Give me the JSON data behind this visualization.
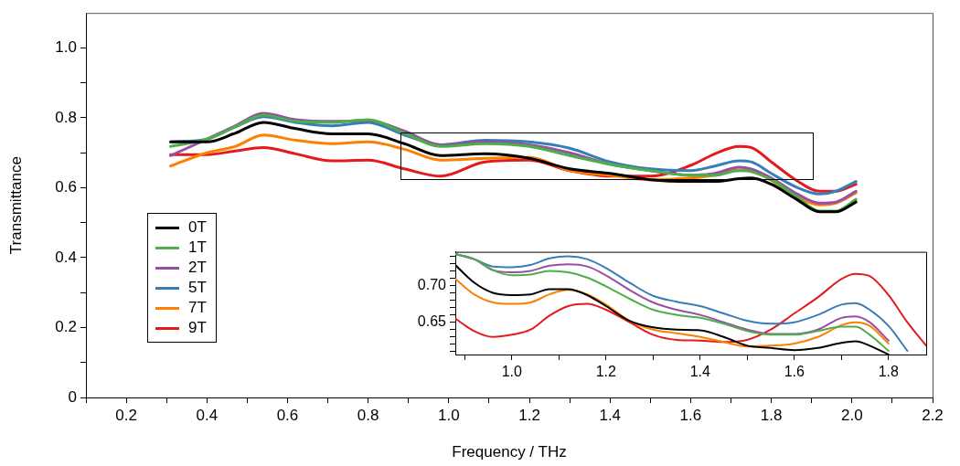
{
  "chart_data": [
    {
      "type": "line",
      "xlabel": "Frequency / THz",
      "ylabel": "Transmittance",
      "xlim": [
        0.1,
        2.2
      ],
      "ylim": [
        0,
        1.1
      ],
      "xticks": [
        {
          "value": 0.1,
          "label": null
        },
        0.2,
        {
          "value": 0.3,
          "label": null
        },
        0.4,
        {
          "value": 0.5,
          "label": null
        },
        0.6,
        {
          "value": 0.7,
          "label": null
        },
        0.8,
        {
          "value": 0.9,
          "label": null
        },
        {
          "value": 1,
          "label": "1.0"
        },
        {
          "value": 1.1,
          "label": null
        },
        1.2,
        {
          "value": 1.3,
          "label": null
        },
        1.4,
        {
          "value": 1.5,
          "label": null
        },
        1.6,
        {
          "value": 1.7,
          "label": null
        },
        1.8,
        {
          "value": 1.9,
          "label": null
        },
        {
          "value": 2,
          "label": "2.0"
        },
        {
          "value": 2.1,
          "label": null
        },
        2.2
      ],
      "yticks": [
        0,
        {
          "value": 0.1,
          "label": null
        },
        0.2,
        {
          "value": 0.3,
          "label": null
        },
        0.4,
        {
          "value": 0.5,
          "label": null
        },
        0.6,
        {
          "value": 0.7,
          "label": null
        },
        0.8,
        {
          "value": 0.9,
          "label": null
        },
        {
          "value": 1,
          "label": "1.0"
        }
      ],
      "x": [
        0.31,
        0.4,
        0.47,
        0.54,
        0.62,
        0.71,
        0.8,
        0.89,
        0.98,
        1.09,
        1.2,
        1.3,
        1.4,
        1.5,
        1.6,
        1.66,
        1.72,
        1.75,
        1.8,
        1.86,
        1.92,
        1.96,
        2.01
      ],
      "series": [
        {
          "name": "0T",
          "color": "#000000",
          "values": [
            0.731,
            0.731,
            0.756,
            0.787,
            0.769,
            0.754,
            0.754,
            0.726,
            0.692,
            0.697,
            0.684,
            0.654,
            0.641,
            0.623,
            0.618,
            0.618,
            0.626,
            0.628,
            0.61,
            0.569,
            0.531,
            0.531,
            0.559
          ]
        },
        {
          "name": "1T",
          "color": "#4daf4a",
          "values": [
            0.718,
            0.739,
            0.774,
            0.808,
            0.79,
            0.787,
            0.795,
            0.756,
            0.718,
            0.726,
            0.718,
            0.692,
            0.667,
            0.649,
            0.636,
            0.636,
            0.649,
            0.646,
            0.623,
            0.577,
            0.533,
            0.533,
            0.567
          ]
        },
        {
          "name": "2T",
          "color": "#984ea3",
          "values": [
            0.692,
            0.739,
            0.777,
            0.813,
            0.795,
            0.79,
            0.792,
            0.762,
            0.723,
            0.731,
            0.723,
            0.7,
            0.667,
            0.649,
            0.636,
            0.641,
            0.659,
            0.654,
            0.628,
            0.585,
            0.556,
            0.559,
            0.59
          ]
        },
        {
          "name": "5T",
          "color": "#377eb8",
          "values": [
            0.731,
            0.739,
            0.774,
            0.803,
            0.787,
            0.777,
            0.787,
            0.751,
            0.723,
            0.736,
            0.731,
            0.713,
            0.674,
            0.654,
            0.649,
            0.662,
            0.677,
            0.674,
            0.641,
            0.603,
            0.582,
            0.59,
            0.618
          ]
        },
        {
          "name": "7T",
          "color": "#ff7f00",
          "values": [
            0.662,
            0.7,
            0.718,
            0.751,
            0.736,
            0.726,
            0.731,
            0.71,
            0.679,
            0.684,
            0.687,
            0.649,
            0.636,
            0.623,
            0.628,
            0.636,
            0.651,
            0.649,
            0.621,
            0.577,
            0.551,
            0.556,
            0.585
          ]
        },
        {
          "name": "9T",
          "color": "#e41a1c",
          "values": [
            0.695,
            0.695,
            0.705,
            0.715,
            0.697,
            0.677,
            0.679,
            0.654,
            0.633,
            0.674,
            0.679,
            0.649,
            0.633,
            0.633,
            0.664,
            0.697,
            0.718,
            0.715,
            0.674,
            0.623,
            0.59,
            0.59,
            0.61
          ]
        }
      ],
      "marker": "none",
      "grid": false,
      "legend": "left"
    },
    {
      "type": "line",
      "xlim": [
        0.88,
        1.88
      ],
      "ylim": [
        0.606,
        0.746
      ],
      "xticks": [
        {
          "value": 0.9,
          "label": null
        },
        {
          "value": 1,
          "label": "1.0"
        },
        {
          "value": 1.1,
          "label": null
        },
        1.2,
        {
          "value": 1.3,
          "label": null
        },
        1.4,
        {
          "value": 1.5,
          "label": null
        },
        1.6,
        {
          "value": 1.7,
          "label": null
        },
        1.8
      ],
      "yticks": [
        {
          "value": 0.61,
          "label": null
        },
        {
          "value": 0.62,
          "label": null
        },
        {
          "value": 0.63,
          "label": null
        },
        {
          "value": 0.64,
          "label": null
        },
        {
          "value": 0.65,
          "label": "0.65"
        },
        {
          "value": 0.66,
          "label": null
        },
        {
          "value": 0.67,
          "label": null
        },
        {
          "value": 0.68,
          "label": null
        },
        {
          "value": 0.69,
          "label": null
        },
        {
          "value": 0.7,
          "label": "0.70"
        },
        {
          "value": 0.71,
          "label": null
        },
        {
          "value": 0.72,
          "label": null
        },
        {
          "value": 0.73,
          "label": null
        },
        {
          "value": 0.74,
          "label": null
        }
      ],
      "x": [
        0.88,
        0.92,
        0.96,
        1.0,
        1.04,
        1.08,
        1.12,
        1.16,
        1.2,
        1.25,
        1.3,
        1.35,
        1.4,
        1.45,
        1.5,
        1.55,
        1.6,
        1.65,
        1.7,
        1.73,
        1.76,
        1.8,
        1.84,
        1.88
      ],
      "series": [
        {
          "color": "#000000",
          "values": [
            0.728,
            0.704,
            0.69,
            0.687,
            0.688,
            0.695,
            0.695,
            0.687,
            0.672,
            0.652,
            0.643,
            0.64,
            0.639,
            0.63,
            0.618,
            0.615,
            0.612,
            0.615,
            0.622,
            0.624,
            0.618,
            0.606,
            null,
            null
          ]
        },
        {
          "color": "#4daf4a",
          "values": [
            0.743,
            0.736,
            0.721,
            0.714,
            0.715,
            0.72,
            0.718,
            0.711,
            0.699,
            0.682,
            0.667,
            0.66,
            0.656,
            0.648,
            0.638,
            0.633,
            0.633,
            0.638,
            0.644,
            0.644,
            0.633,
            0.611,
            null,
            null
          ]
        },
        {
          "color": "#984ea3",
          "values": [
            0.743,
            0.736,
            0.721,
            0.718,
            0.72,
            0.727,
            0.729,
            0.726,
            0.714,
            0.694,
            0.677,
            0.667,
            0.66,
            0.65,
            0.64,
            0.634,
            0.634,
            0.64,
            0.656,
            0.658,
            0.65,
            0.625,
            null,
            null
          ]
        },
        {
          "color": "#377eb8",
          "values": [
            0.743,
            0.736,
            0.726,
            0.725,
            0.728,
            0.737,
            0.74,
            0.736,
            0.724,
            0.704,
            0.686,
            0.678,
            0.672,
            0.662,
            0.652,
            0.648,
            0.65,
            0.66,
            0.674,
            0.676,
            0.667,
            0.645,
            0.611,
            null
          ]
        },
        {
          "color": "#ff7f00",
          "values": [
            0.709,
            0.688,
            0.677,
            0.675,
            0.677,
            0.688,
            0.694,
            0.688,
            0.674,
            0.652,
            0.64,
            0.635,
            0.63,
            0.623,
            0.617,
            0.618,
            0.621,
            0.63,
            0.646,
            0.65,
            0.645,
            0.621,
            null,
            null
          ]
        },
        {
          "color": "#e41a1c",
          "values": [
            0.655,
            0.638,
            0.63,
            0.633,
            0.64,
            0.659,
            0.672,
            0.675,
            0.667,
            0.65,
            0.633,
            0.626,
            0.625,
            0.623,
            0.626,
            0.64,
            0.662,
            0.684,
            0.709,
            0.716,
            0.713,
            0.687,
            0.65,
            0.618
          ]
        }
      ],
      "marker": "none",
      "grid": false
    }
  ]
}
